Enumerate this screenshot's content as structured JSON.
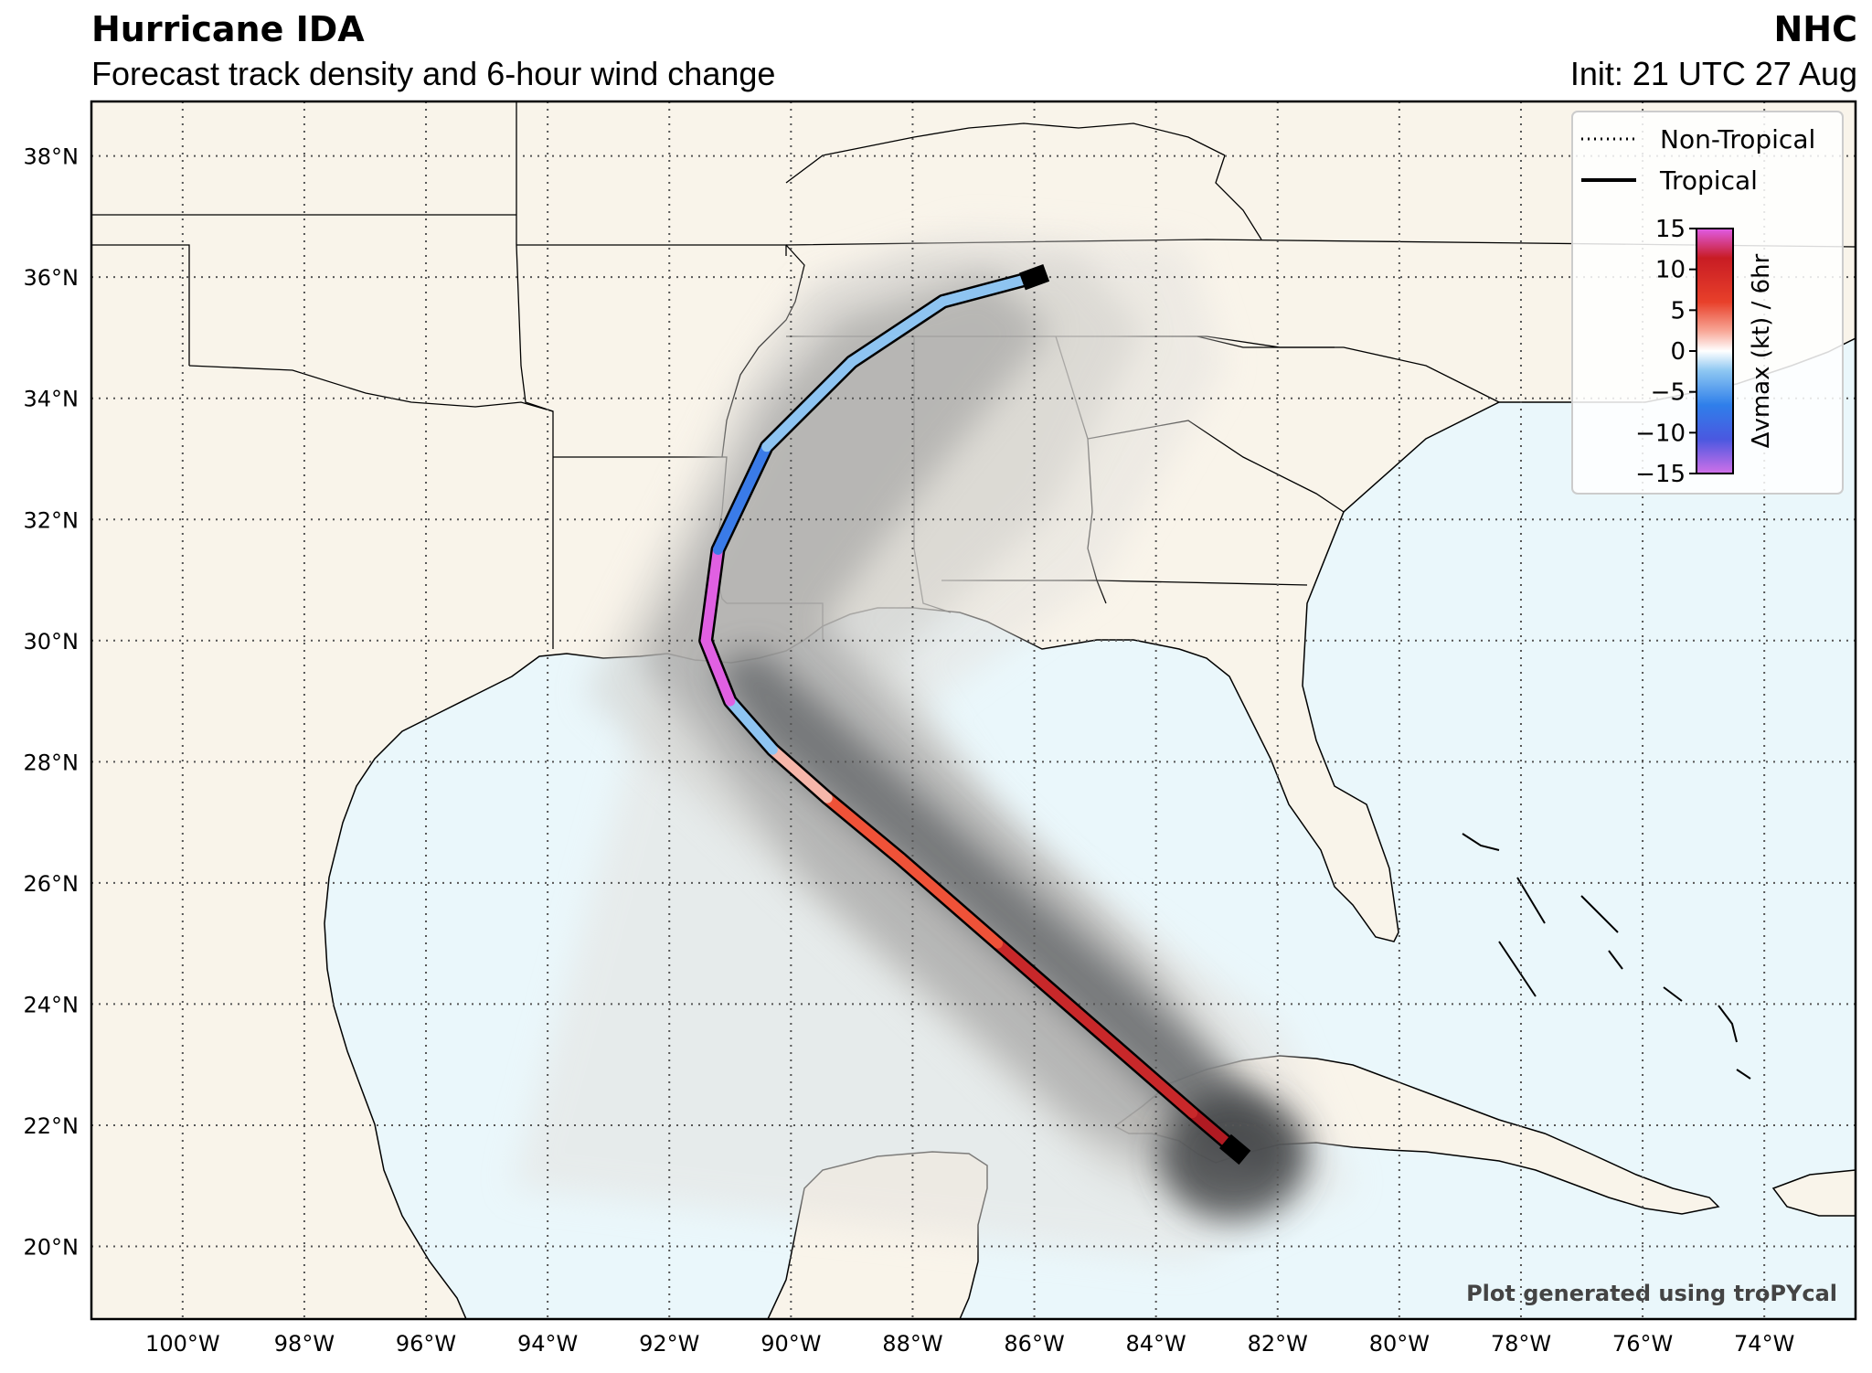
{
  "header": {
    "title": "Hurricane IDA",
    "subtitle": "Forecast track density and 6-hour wind change",
    "agency": "NHC",
    "init": "Init: 21 UTC 27 Aug"
  },
  "map": {
    "lon_range": [
      -101.5,
      -72.5
    ],
    "lat_range": [
      18.8,
      38.9
    ],
    "lat_ticks": [
      {
        "value": 38,
        "label": "38°N"
      },
      {
        "value": 36,
        "label": "36°N"
      },
      {
        "value": 34,
        "label": "34°N"
      },
      {
        "value": 32,
        "label": "32°N"
      },
      {
        "value": 30,
        "label": "30°N"
      },
      {
        "value": 28,
        "label": "28°N"
      },
      {
        "value": 26,
        "label": "26°N"
      },
      {
        "value": 24,
        "label": "24°N"
      },
      {
        "value": 22,
        "label": "22°N"
      },
      {
        "value": 20,
        "label": "20°N"
      }
    ],
    "lon_ticks": [
      {
        "value": -100,
        "label": "100°W"
      },
      {
        "value": -98,
        "label": "98°W"
      },
      {
        "value": -96,
        "label": "96°W"
      },
      {
        "value": -94,
        "label": "94°W"
      },
      {
        "value": -92,
        "label": "92°W"
      },
      {
        "value": -90,
        "label": "90°W"
      },
      {
        "value": -88,
        "label": "88°W"
      },
      {
        "value": -86,
        "label": "86°W"
      },
      {
        "value": -84,
        "label": "84°W"
      },
      {
        "value": -82,
        "label": "82°W"
      },
      {
        "value": -80,
        "label": "80°W"
      },
      {
        "value": -78,
        "label": "78°W"
      },
      {
        "value": -76,
        "label": "76°W"
      },
      {
        "value": -74,
        "label": "74°W"
      }
    ],
    "colors": {
      "land": "#f9f4ea",
      "ocean": "#eaf7fb",
      "border": "#000000",
      "grid": "#555555"
    },
    "credit": "Plot generated using troPYcal"
  },
  "legend": {
    "items": [
      {
        "label": "Non-Tropical",
        "style": "dotted"
      },
      {
        "label": "Tropical",
        "style": "solid"
      }
    ],
    "colorbar": {
      "label": "Δvmax (kt) / 6hr",
      "ticks": [
        "15",
        "10",
        "5",
        "0",
        "−5",
        "−10",
        "−15"
      ]
    }
  },
  "chart_data": {
    "type": "map-track",
    "storm": "IDA",
    "track": [
      {
        "lon": -82.7,
        "lat": 21.6,
        "dvmax": 15
      },
      {
        "lon": -83.4,
        "lat": 22.2,
        "dvmax": 10
      },
      {
        "lon": -85.0,
        "lat": 23.6,
        "dvmax": 10
      },
      {
        "lon": -86.6,
        "lat": 25.0,
        "dvmax": 8
      },
      {
        "lon": -88.2,
        "lat": 26.4,
        "dvmax": 6
      },
      {
        "lon": -89.4,
        "lat": 27.4,
        "dvmax": 3
      },
      {
        "lon": -90.3,
        "lat": 28.2,
        "dvmax": -5
      },
      {
        "lon": -91.0,
        "lat": 29.0,
        "dvmax": -15
      },
      {
        "lon": -91.4,
        "lat": 30.0,
        "dvmax": -15
      },
      {
        "lon": -91.2,
        "lat": 31.5,
        "dvmax": -8
      },
      {
        "lon": -90.4,
        "lat": 33.2,
        "dvmax": -4
      },
      {
        "lon": -89.0,
        "lat": 34.6,
        "dvmax": -4
      },
      {
        "lon": -87.5,
        "lat": 35.6,
        "dvmax": -4
      },
      {
        "lon": -86.0,
        "lat": 36.0,
        "dvmax": -4
      }
    ]
  }
}
